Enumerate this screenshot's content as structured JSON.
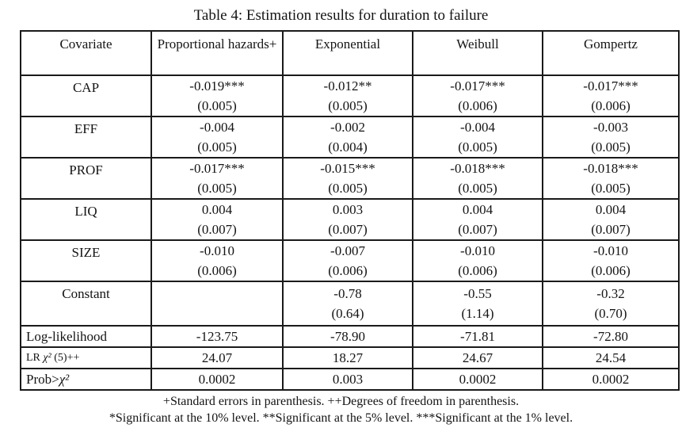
{
  "title": "Table 4: Estimation results for duration to failure",
  "table": {
    "columns": [
      "Covariate",
      "Proportional hazards+",
      "Exponential",
      "Weibull",
      "Gompertz"
    ],
    "rows": [
      {
        "label": "CAP",
        "cells": [
          {
            "coef": "-0.019***",
            "se": "(0.005)"
          },
          {
            "coef": "-0.012**",
            "se": "(0.005)"
          },
          {
            "coef": "-0.017***",
            "se": "(0.006)"
          },
          {
            "coef": "-0.017***",
            "se": "(0.006)"
          }
        ]
      },
      {
        "label": "EFF",
        "cells": [
          {
            "coef": "-0.004",
            "se": "(0.005)"
          },
          {
            "coef": "-0.002",
            "se": "(0.004)"
          },
          {
            "coef": "-0.004",
            "se": "(0.005)"
          },
          {
            "coef": "-0.003",
            "se": "(0.005)"
          }
        ]
      },
      {
        "label": "PROF",
        "cells": [
          {
            "coef": "-0.017***",
            "se": "(0.005)"
          },
          {
            "coef": "-0.015***",
            "se": "(0.005)"
          },
          {
            "coef": "-0.018***",
            "se": "(0.005)"
          },
          {
            "coef": "-0.018***",
            "se": "(0.005)"
          }
        ]
      },
      {
        "label": "LIQ",
        "cells": [
          {
            "coef": "0.004",
            "se": "(0.007)"
          },
          {
            "coef": "0.003",
            "se": "(0.007)"
          },
          {
            "coef": "0.004",
            "se": "(0.007)"
          },
          {
            "coef": "0.004",
            "se": "(0.007)"
          }
        ]
      },
      {
        "label": "SIZE",
        "cells": [
          {
            "coef": "-0.010",
            "se": "(0.006)"
          },
          {
            "coef": "-0.007",
            "se": "(0.006)"
          },
          {
            "coef": "-0.010",
            "se": "(0.006)"
          },
          {
            "coef": "-0.010",
            "se": "(0.006)"
          }
        ]
      },
      {
        "label": "Constant",
        "cells": [
          {
            "coef": "",
            "se": ""
          },
          {
            "coef": "-0.78",
            "se": "(0.64)"
          },
          {
            "coef": "-0.55",
            "se": "(1.14)"
          },
          {
            "coef": "-0.32",
            "se": "(0.70)"
          }
        ]
      }
    ],
    "stats": [
      {
        "label_prefix": "Log-likelihood",
        "label_chi": "",
        "label_suffix": "",
        "values": [
          "-123.75",
          "-78.90",
          "-71.81",
          "-72.80"
        ]
      },
      {
        "label_prefix": "LR ",
        "label_chi": "χ²",
        "label_suffix": " (5)++",
        "values": [
          "24.07",
          "18.27",
          "24.67",
          "24.54"
        ]
      },
      {
        "label_prefix": "Prob>",
        "label_chi": "χ²",
        "label_suffix": "",
        "values": [
          "0.0002",
          "0.003",
          "0.0002",
          "0.0002"
        ]
      }
    ]
  },
  "footnotes": [
    "+Standard errors in parenthesis. ++Degrees of freedom in parenthesis.",
    "*Significant at the 10% level. **Significant at the 5% level. ***Significant at the 1% level."
  ]
}
